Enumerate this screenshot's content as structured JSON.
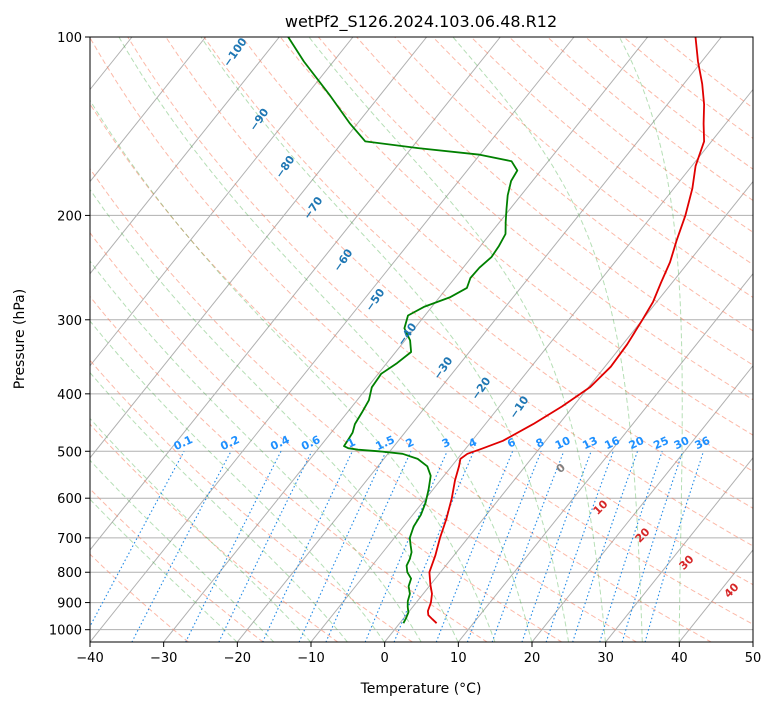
{
  "chart_data": {
    "type": "line",
    "diagram": "skew-T log-P",
    "title": "wetPf2_S126.2024.103.06.48.R12",
    "xlabel": "Temperature (°C)",
    "ylabel": "Pressure (hPa)",
    "xlim": [
      -40,
      50
    ],
    "ylim": [
      1050,
      100
    ],
    "y_scale": "log",
    "x_ticks": [
      -40,
      -30,
      -20,
      -10,
      0,
      10,
      20,
      30,
      40,
      50
    ],
    "x_tick_labels": [
      "−40",
      "−30",
      "−20",
      "−10",
      "0",
      "10",
      "20",
      "30",
      "40",
      "50"
    ],
    "y_ticks": [
      1000,
      900,
      800,
      700,
      600,
      500,
      400,
      300,
      200,
      100
    ],
    "grid": true,
    "colors": {
      "temperature": "#e00000",
      "dewpoint": "#008000",
      "dry_adiabat_labels": "#d62728",
      "moist_adiabat_labels": "#1f77b4",
      "mixing_ratio_labels": "#1e90ff",
      "zero_isotherm_label": "#808080"
    },
    "series": [
      {
        "pressure_hpa": [
          975,
          960,
          945,
          930,
          900,
          870,
          840,
          800,
          750,
          700,
          650,
          600,
          560,
          530,
          515,
          505,
          495,
          480,
          450,
          420,
          390,
          360,
          330,
          300,
          280,
          260,
          240,
          220,
          200,
          180,
          165,
          150,
          140,
          130,
          120,
          110,
          100
        ],
        "temperature_c": [
          5.0,
          4.0,
          3.0,
          2.5,
          2.0,
          1.2,
          0.0,
          -1.5,
          -2.5,
          -3.8,
          -5.0,
          -6.5,
          -8.0,
          -9.0,
          -9.6,
          -9.2,
          -7.8,
          -5.8,
          -3.5,
          -1.5,
          0.2,
          0.8,
          0.6,
          0.0,
          -0.5,
          -1.5,
          -2.5,
          -4.0,
          -5.5,
          -7.5,
          -9.5,
          -11.0,
          -13.0,
          -15.0,
          -17.5,
          -20.5,
          -23.5
        ]
      },
      {
        "pressure_hpa": [
          975,
          955,
          935,
          915,
          895,
          870,
          845,
          820,
          800,
          780,
          760,
          740,
          720,
          700,
          670,
          640,
          610,
          580,
          550,
          530,
          515,
          505,
          500,
          497,
          494,
          490,
          480,
          465,
          450,
          430,
          410,
          390,
          370,
          355,
          340,
          325,
          310,
          295,
          285,
          275,
          265,
          255,
          245,
          235,
          225,
          215,
          205,
          195,
          185,
          175,
          168,
          162,
          158,
          154,
          150,
          140,
          125,
          110,
          100
        ],
        "temperature_c": [
          0.5,
          0.3,
          0.0,
          -0.7,
          -1.3,
          -1.8,
          -2.8,
          -3.3,
          -4.5,
          -5.3,
          -5.6,
          -6.1,
          -7.0,
          -7.9,
          -8.6,
          -8.9,
          -9.6,
          -10.6,
          -11.8,
          -13.3,
          -15.4,
          -18.0,
          -21.5,
          -24.5,
          -26.0,
          -26.8,
          -26.9,
          -27.1,
          -27.7,
          -28.0,
          -28.4,
          -29.4,
          -29.6,
          -28.6,
          -27.9,
          -29.3,
          -31.4,
          -32.3,
          -31.0,
          -28.6,
          -27.3,
          -27.9,
          -27.8,
          -27.3,
          -27.5,
          -27.9,
          -29.2,
          -30.5,
          -31.8,
          -32.9,
          -33.2,
          -35.0,
          -40.0,
          -49.1,
          -57.0,
          -61.0,
          -67.0,
          -74.0,
          -78.8
        ]
      }
    ],
    "dry_adiabat_labels": [
      "10",
      "20",
      "30",
      "40"
    ],
    "moist_adiabat_labels": [
      "−100",
      "−90",
      "−80",
      "−70",
      "−60",
      "−50",
      "−40",
      "−30",
      "−20",
      "−10"
    ],
    "zero_isotherm_label": "0",
    "mixing_ratio_labels": [
      "0.1",
      "0.2",
      "0.4",
      "0.6",
      "1",
      "1.5",
      "2",
      "3",
      "4",
      "6",
      "8",
      "10",
      "13",
      "16",
      "20",
      "25",
      "30",
      "36"
    ]
  }
}
